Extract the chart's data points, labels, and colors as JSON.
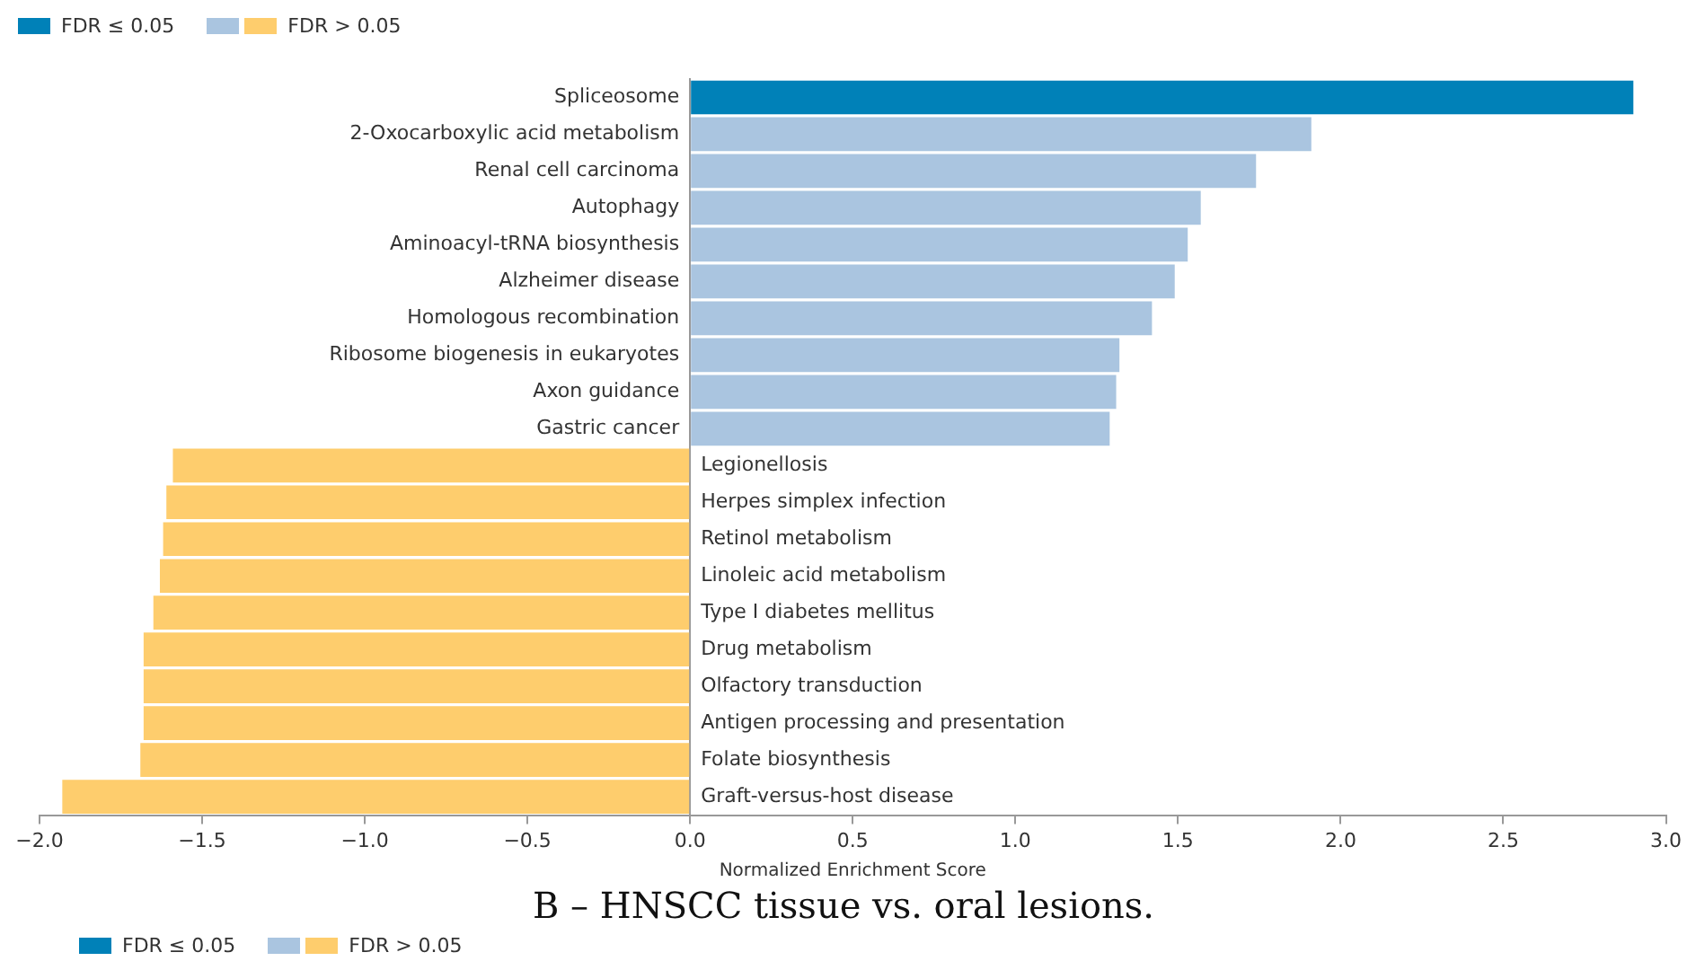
{
  "chart_data": {
    "type": "bar",
    "orientation": "horizontal",
    "stacked": true,
    "xlabel": "Normalized Enrichment Score",
    "categories": [
      "Spliceosome",
      "2-Oxocarboxylic acid metabolism",
      "Renal cell carcinoma",
      "Autophagy",
      "Aminoacyl-tRNA biosynthesis",
      "Alzheimer disease",
      "Homologous recombination",
      "Ribosome biogenesis in eukaryotes",
      "Axon guidance",
      "Gastric cancer",
      "Legionellosis",
      "Herpes simplex infection",
      "Retinol metabolism",
      "Linoleic acid metabolism",
      "Type I diabetes mellitus",
      "Drug metabolism",
      "Olfactory transduction",
      "Antigen processing and presentation",
      "Folate biosynthesis",
      "Graft-versus-host disease"
    ],
    "series": [
      {
        "name": "FDR ≤ 0.05",
        "color": "#0081b8",
        "values": [
          2.9,
          null,
          null,
          null,
          null,
          null,
          null,
          null,
          null,
          null,
          null,
          null,
          null,
          null,
          null,
          null,
          null,
          null,
          null,
          null
        ],
        "colors": [
          "#0081b8",
          null,
          null,
          null,
          null,
          null,
          null,
          null,
          null,
          null,
          null,
          null,
          null,
          null,
          null,
          null,
          null,
          null,
          null,
          null
        ]
      },
      {
        "name": "FDR > 0.05",
        "color": "#aac5e0",
        "values": [
          null,
          1.91,
          1.74,
          1.57,
          1.53,
          1.49,
          1.42,
          1.32,
          1.31,
          1.29,
          -1.59,
          -1.61,
          -1.62,
          -1.63,
          -1.65,
          -1.68,
          -1.68,
          -1.68,
          -1.69,
          -1.93
        ],
        "colors": [
          null,
          "#aac5e0",
          "#aac5e0",
          "#aac5e0",
          "#aac5e0",
          "#aac5e0",
          "#aac5e0",
          "#aac5e0",
          "#aac5e0",
          "#aac5e0",
          "#fecd6d",
          "#fecd6d",
          "#fecd6d",
          "#fecd6d",
          "#fecd6d",
          "#fecd6d",
          "#fecd6d",
          "#fecd6d",
          "#fecd6d",
          "#fecd6d"
        ]
      }
    ],
    "xlim": [
      -2,
      3
    ],
    "xticks": [
      {
        "value": -2,
        "label": "−2.0"
      },
      {
        "value": -1.5,
        "label": "−1.5"
      },
      {
        "value": -1,
        "label": "−1.0"
      },
      {
        "value": -0.5,
        "label": "−0.5"
      },
      {
        "value": 0,
        "label": "0.0"
      },
      {
        "value": 0.5,
        "label": "0.5"
      },
      {
        "value": 1,
        "label": "1.0"
      },
      {
        "value": 1.5,
        "label": "1.5"
      },
      {
        "value": 2,
        "label": "2.0"
      },
      {
        "value": 2.5,
        "label": "2.5"
      },
      {
        "value": 3,
        "label": "3.0"
      }
    ],
    "grid": false,
    "legend": "top left",
    "annotations": [
      "B – HNSCC tissue vs. oral lesions."
    ]
  }
}
